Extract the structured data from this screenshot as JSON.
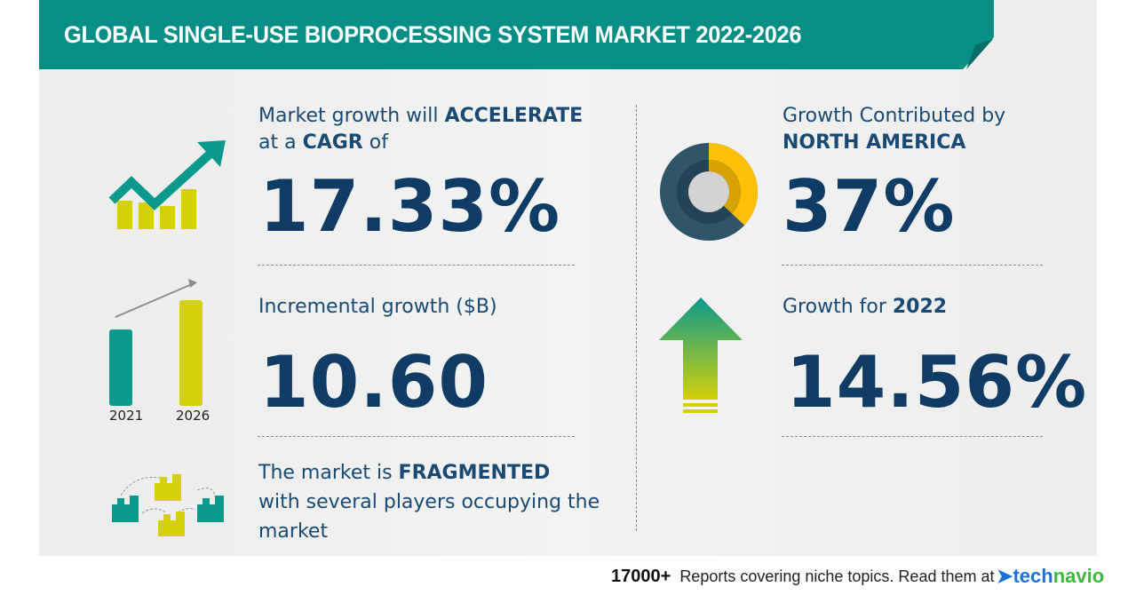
{
  "header": {
    "title": "GLOBAL SINGLE-USE BIOPROCESSING SYSTEM MARKET 2022-2026"
  },
  "cagr": {
    "line1_pre": "Market growth will ",
    "line1_bold": "ACCELERATE",
    "line2_pre": "at a ",
    "line2_bold": "CAGR",
    "line2_post": " of",
    "value": "17.33%",
    "icon": "growth-chart-arrow-icon"
  },
  "incremental": {
    "label": "Incremental growth ($B)",
    "value": "10.60",
    "bars": [
      {
        "label": "2021"
      },
      {
        "label": "2026"
      }
    ],
    "icon": "bar-comparison-icon"
  },
  "market": {
    "pre": "The market is ",
    "bold": "FRAGMENTED",
    "rest": "with several players occupying the market",
    "icon": "buildings-network-icon"
  },
  "region": {
    "line1": "Growth Contributed by",
    "region": "NORTH AMERICA",
    "value": "37%",
    "share": 0.37,
    "icon": "donut-chart-icon"
  },
  "yoy": {
    "pre": "Growth for ",
    "year": "2022",
    "value": "14.56%",
    "icon": "up-arrow-icon"
  },
  "footer": {
    "count": "17000+",
    "text": "Reports covering niche topics. Read them at",
    "logo_a": "tech",
    "logo_b": "navio"
  },
  "colors": {
    "teal": "#078f86",
    "yellow": "#d4d10a",
    "navy": "#0f3c64",
    "donut_dark": "#2f5568",
    "donut_gold": "#ffc107"
  }
}
